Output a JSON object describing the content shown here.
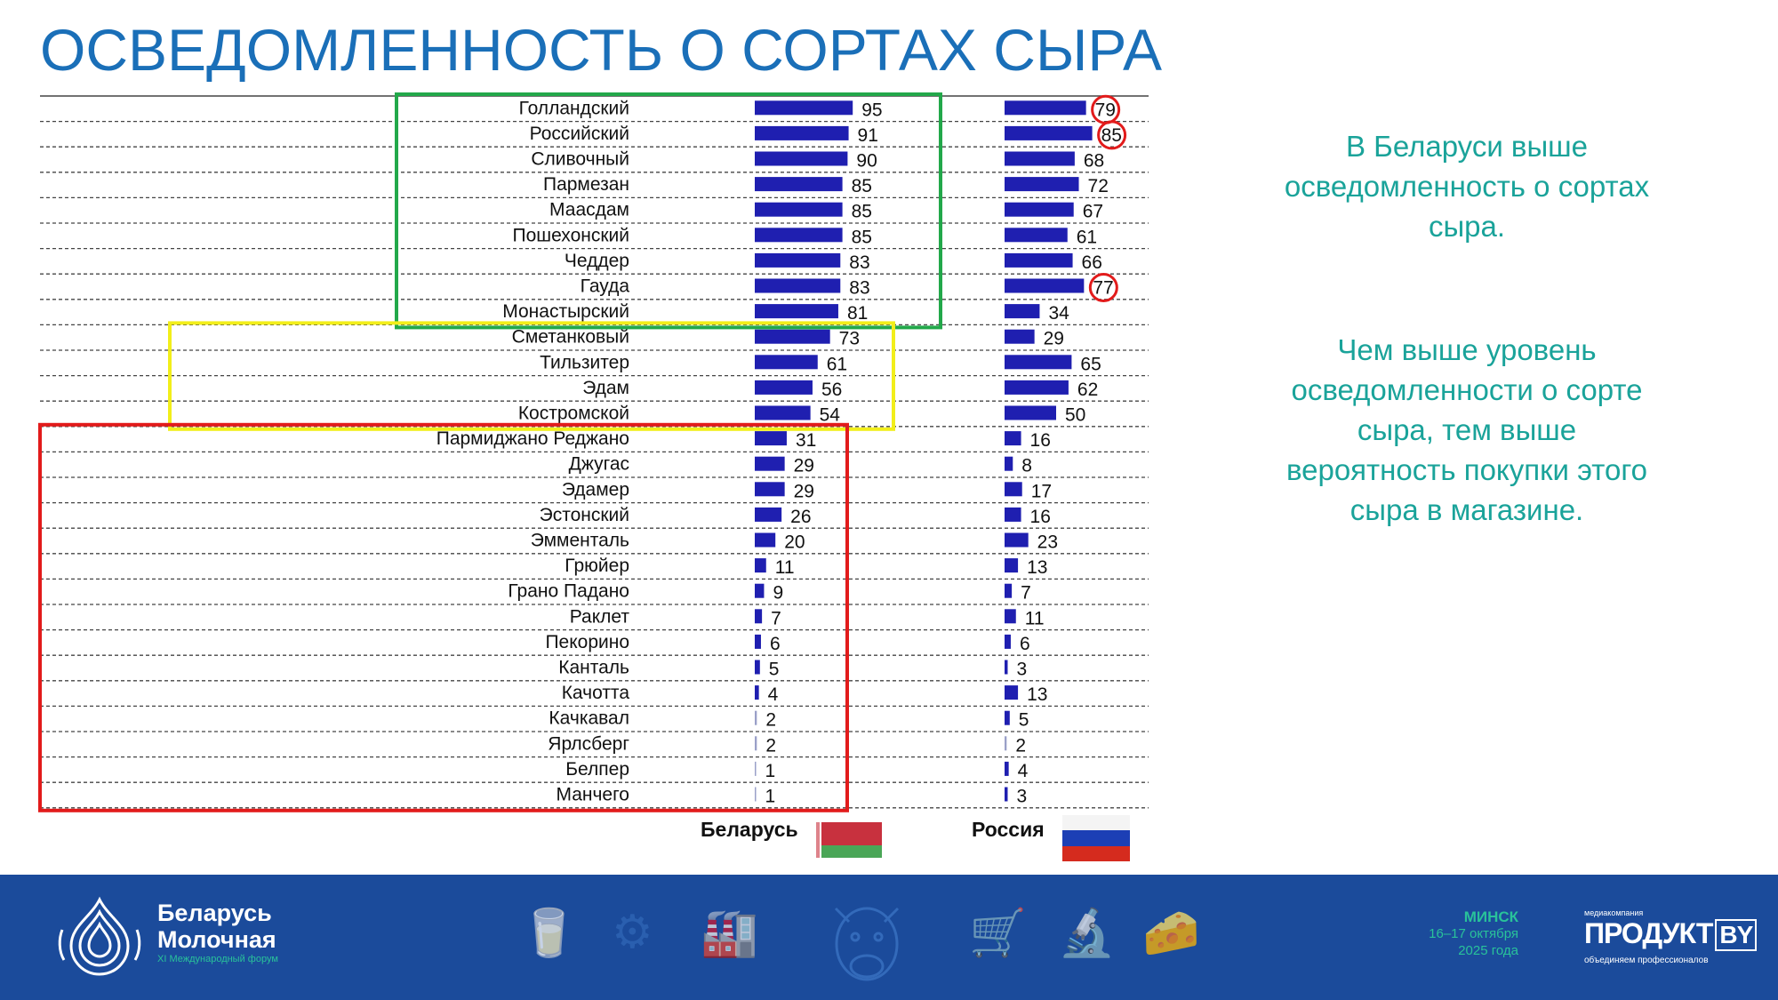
{
  "title": "ОСВЕДОМЛЕННОСТЬ О СОРТАХ СЫРА",
  "chart_data": {
    "type": "bar",
    "orientation": "horizontal",
    "categories": [
      "Голландский",
      "Российский",
      "Сливочный",
      "Пармезан",
      "Маасдам",
      "Пошехонский",
      "Чеддер",
      "Гауда",
      "Монастырский",
      "Сметанковый",
      "Тильзитер",
      "Эдам",
      "Костромской",
      "Пармиджано Реджано",
      "Джугас",
      "Эдамер",
      "Эстонский",
      "Эмменталь",
      "Грюйер",
      "Грано Падано",
      "Раклет",
      "Пекорино",
      "Канталь",
      "Качотта",
      "Качкавал",
      "Ярлсберг",
      "Белпер",
      "Манчего"
    ],
    "series": [
      {
        "name": "Беларусь",
        "values": [
          95,
          91,
          90,
          85,
          85,
          85,
          83,
          83,
          81,
          73,
          61,
          56,
          54,
          31,
          29,
          29,
          26,
          20,
          11,
          9,
          7,
          6,
          5,
          4,
          2,
          2,
          1,
          1
        ]
      },
      {
        "name": "Россия",
        "values": [
          79,
          85,
          68,
          72,
          67,
          61,
          66,
          77,
          34,
          29,
          65,
          62,
          50,
          16,
          8,
          17,
          16,
          23,
          13,
          7,
          11,
          6,
          3,
          13,
          5,
          2,
          4,
          3
        ]
      }
    ],
    "bar_color": "#1f1fb0",
    "xlim": [
      0,
      100
    ],
    "highlight_groups": [
      {
        "color": "#22a84a",
        "from": 0,
        "to": 8
      },
      {
        "color": "#f2ee1a",
        "from": 9,
        "to": 12
      },
      {
        "color": "#e21b1b",
        "from": 13,
        "to": 27
      }
    ],
    "circled": [
      {
        "series": 1,
        "index": 0
      },
      {
        "series": 1,
        "index": 1
      },
      {
        "series": 1,
        "index": 7
      }
    ],
    "circle_color": "#e21b1b"
  },
  "legend": {
    "belarus": "Беларусь",
    "russia": "Россия"
  },
  "notes": {
    "note1": "В Беларуси выше осведомленность о сортах сыра.",
    "note2": "Чем выше уровень осведомленности о сорте сыра, тем выше вероятность покупки этого сыра в магазине."
  },
  "footer": {
    "logo_line1": "Беларусь",
    "logo_line2": "Молочная",
    "logo_sub": "XI Международный форум",
    "city": "МИНСК",
    "dates": "16–17 октября",
    "year": "2025 года",
    "brand_small": "медиакомпания",
    "brand_main": "ПРОДУКТ",
    "brand_by": "BY",
    "brand_tag": "объединяем профессионалов"
  }
}
